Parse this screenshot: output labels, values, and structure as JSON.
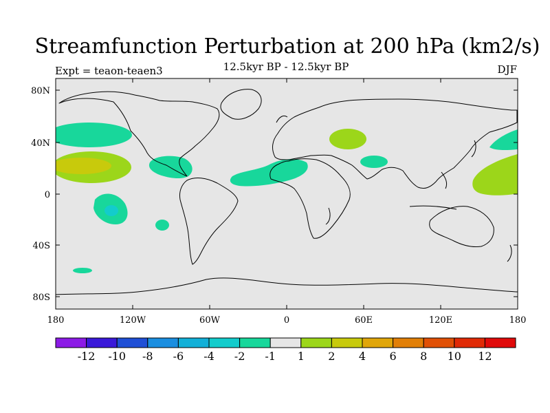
{
  "title": "Streamfunction Perturbation at 200 hPa (km2/s)",
  "subtitle": "12.5kyr BP - 12.5kyr BP",
  "experiment": "Expt = teaon-teaen3",
  "season": "DJF",
  "lon_labels": [
    "180",
    "120W",
    "60W",
    "0",
    "60E",
    "120E",
    "180"
  ],
  "lat_labels": [
    "80N",
    "40N",
    "0",
    "40S",
    "80S"
  ],
  "colors": {
    "land_bg": "#e6e6e6",
    "coast": "#000000"
  },
  "colorbar": {
    "labels": [
      "-12",
      "-10",
      "-8",
      "-6",
      "-4",
      "-2",
      "-1",
      "1",
      "2",
      "4",
      "6",
      "8",
      "10",
      "12"
    ],
    "colors": [
      "#8c1be6",
      "#3a19d9",
      "#1f4fd6",
      "#1a8ee0",
      "#12b0d8",
      "#13cccc",
      "#18d79b",
      "#e6e6e6",
      "#9cd61a",
      "#c8ca0c",
      "#e0a60a",
      "#e17f07",
      "#e05006",
      "#e02a06",
      "#e00a0a"
    ]
  },
  "contour_regions": [
    {
      "name": "north-pacific-neg",
      "value_class": "-2 to -1"
    },
    {
      "name": "central-pacific-pos",
      "value_class": "1 to 2"
    },
    {
      "name": "central-pacific-core",
      "value_class": "2 to 4"
    },
    {
      "name": "south-pacific-neg",
      "value_class": "-2 to -1"
    },
    {
      "name": "south-pacific-core",
      "value_class": "-4 to -2"
    },
    {
      "name": "caribbean-neg",
      "value_class": "-2 to -1"
    },
    {
      "name": "atlantic-africa-neg",
      "value_class": "-2 to -1"
    },
    {
      "name": "caspian-pos",
      "value_class": "1 to 2"
    },
    {
      "name": "india-neg",
      "value_class": "-2 to -1"
    },
    {
      "name": "west-pacific-pos",
      "value_class": "1 to 2"
    },
    {
      "name": "north-west-pacific-neg",
      "value_class": "-2 to -1"
    }
  ]
}
